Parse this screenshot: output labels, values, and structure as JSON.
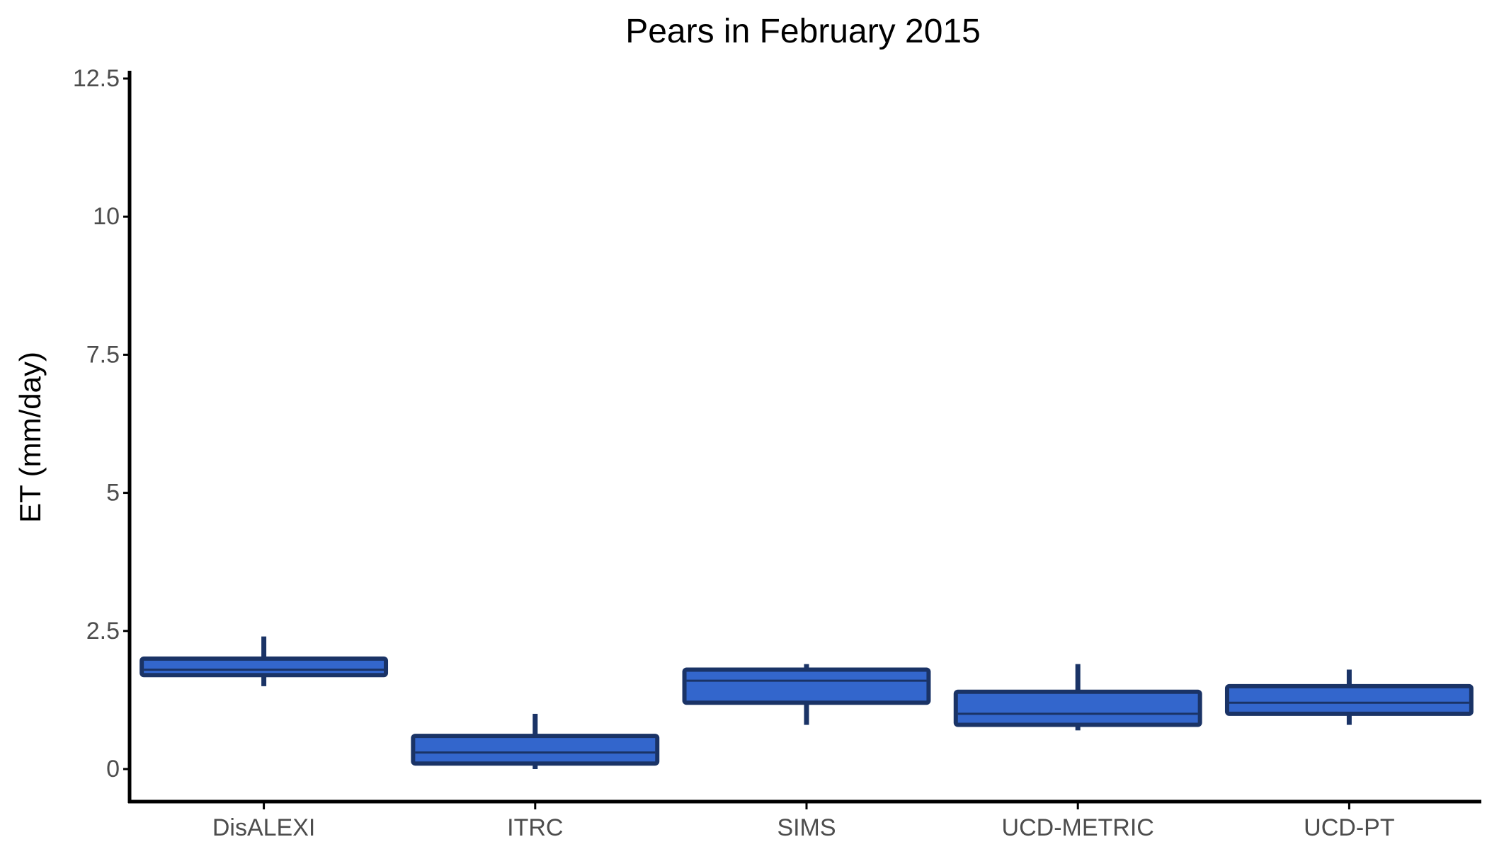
{
  "chart_data": {
    "type": "box",
    "title": "Pears in February 2015",
    "xlabel": "",
    "ylabel": "ET (mm/day)",
    "categories": [
      "DisALEXI",
      "ITRC",
      "SIMS",
      "UCD-METRIC",
      "UCD-PT"
    ],
    "boxes": [
      {
        "category": "DisALEXI",
        "min": 1.5,
        "q1": 1.7,
        "median": 1.8,
        "q3": 2.0,
        "max": 2.4
      },
      {
        "category": "ITRC",
        "min": 0.0,
        "q1": 0.1,
        "median": 0.3,
        "q3": 0.6,
        "max": 1.0
      },
      {
        "category": "SIMS",
        "min": 0.8,
        "q1": 1.2,
        "median": 1.6,
        "q3": 1.8,
        "max": 1.9
      },
      {
        "category": "UCD-METRIC",
        "min": 0.7,
        "q1": 0.8,
        "median": 1.0,
        "q3": 1.4,
        "max": 1.9
      },
      {
        "category": "UCD-PT",
        "min": 0.8,
        "q1": 1.0,
        "median": 1.2,
        "q3": 1.5,
        "max": 1.8
      }
    ],
    "yticks": [
      0,
      2.5,
      5,
      7.5,
      10,
      12.5
    ],
    "ytick_labels": [
      "0",
      "2.5",
      "5",
      "7.5",
      "10",
      "12.5"
    ],
    "ylim": [
      -0.6,
      12.6
    ],
    "grid": false,
    "colors": {
      "box_fill": "#3366cc",
      "box_outline": "#1a3366",
      "axis": "#000000",
      "tick_label": "#4d4d4d"
    }
  }
}
